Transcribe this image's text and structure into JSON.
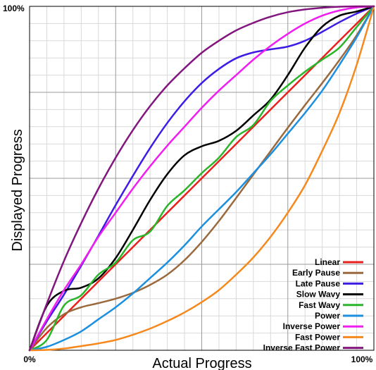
{
  "chart_data": {
    "type": "line",
    "xlabel": "Actual Progress",
    "ylabel": "Displayed Progress",
    "xlim": [
      0,
      100
    ],
    "ylim": [
      0,
      100
    ],
    "x_ticks": [
      {
        "value": 0,
        "label": "0%"
      },
      {
        "value": 100,
        "label": "100%"
      }
    ],
    "y_ticks": [
      {
        "value": 0,
        "label": "0%"
      },
      {
        "value": 100,
        "label": "100%"
      }
    ],
    "grid": true,
    "legend_position": "bottom-right",
    "series": [
      {
        "name": "Linear",
        "color": "#e8211d",
        "x": [
          0,
          10,
          20,
          30,
          40,
          50,
          60,
          70,
          80,
          90,
          100
        ],
        "y": [
          0,
          10,
          20,
          30,
          40,
          50,
          60,
          70,
          80,
          90,
          100
        ]
      },
      {
        "name": "Early Pause",
        "color": "#9a6a3e",
        "x": [
          0,
          5,
          10,
          15,
          20,
          25,
          30,
          35,
          40,
          45,
          50,
          55,
          60,
          65,
          70,
          75,
          80,
          85,
          90,
          95,
          100
        ],
        "y": [
          0,
          6.5,
          10.5,
          12.5,
          13.7,
          15,
          16.7,
          19,
          22,
          26.2,
          31.5,
          37.6,
          44.3,
          51.1,
          57.9,
          64.7,
          71.3,
          77.7,
          84.4,
          91.6,
          100
        ]
      },
      {
        "name": "Late Pause",
        "color": "#3f1be6",
        "x": [
          0,
          5,
          10,
          15,
          20,
          25,
          30,
          35,
          40,
          45,
          50,
          55,
          60,
          65,
          70,
          75,
          80,
          85,
          90,
          95,
          100
        ],
        "y": [
          0,
          8.4,
          16.2,
          24.6,
          33.3,
          42.2,
          50.7,
          58.8,
          66.1,
          72.4,
          77.7,
          81.8,
          84.9,
          86.6,
          87.5,
          88.3,
          90,
          92.6,
          95.4,
          97.9,
          100
        ]
      },
      {
        "name": "Slow Wavy",
        "color": "#000000",
        "x": [
          0,
          5,
          10,
          15,
          20,
          25,
          30,
          35,
          40,
          45,
          50,
          55,
          60,
          65,
          70,
          75,
          80,
          85,
          90,
          95,
          100
        ],
        "y": [
          0,
          12.9,
          17.3,
          18.2,
          20.9,
          26.8,
          35,
          43.7,
          51.2,
          56.7,
          59.3,
          60.9,
          63.8,
          68.3,
          72.9,
          80,
          88,
          94.1,
          97.3,
          98.5,
          100
        ]
      },
      {
        "name": "Fast Wavy",
        "color": "#2bb52b",
        "x": [
          0,
          5,
          10,
          15,
          20,
          25,
          30,
          35,
          40,
          45,
          50,
          55,
          60,
          65,
          70,
          75,
          80,
          85,
          90,
          95,
          100
        ],
        "y": [
          0,
          3,
          13,
          16,
          22,
          25.5,
          32,
          34.5,
          42,
          46.5,
          51.5,
          56,
          62,
          65.5,
          72.5,
          77,
          81,
          84.5,
          88,
          94,
          100
        ]
      },
      {
        "name": "Power",
        "color": "#1b8fe0",
        "x": [
          0,
          5,
          10,
          15,
          20,
          25,
          30,
          35,
          40,
          45,
          50,
          55,
          60,
          65,
          70,
          75,
          80,
          85,
          90,
          95,
          100
        ],
        "y": [
          0,
          1,
          3,
          5.5,
          9,
          12.5,
          16.5,
          21,
          25.5,
          30.5,
          36,
          41,
          46,
          51.5,
          57,
          63,
          69,
          75.5,
          83,
          91,
          100
        ]
      },
      {
        "name": "Inverse Power",
        "color": "#f01ef0",
        "x": [
          0,
          5,
          10,
          15,
          20,
          25,
          30,
          35,
          40,
          45,
          50,
          55,
          60,
          65,
          70,
          75,
          80,
          85,
          90,
          95,
          100
        ],
        "y": [
          0,
          9,
          17.5,
          25,
          33,
          40,
          47,
          53.5,
          59.5,
          65,
          70.5,
          75.5,
          80,
          84.5,
          88.5,
          92,
          95,
          97.3,
          98.8,
          99.7,
          100
        ]
      },
      {
        "name": "Fast Power",
        "color": "#f5891d",
        "x": [
          0,
          5,
          10,
          15,
          20,
          25,
          30,
          35,
          40,
          45,
          50,
          55,
          60,
          65,
          70,
          75,
          80,
          85,
          90,
          95,
          100
        ],
        "y": [
          0,
          0.1,
          0.5,
          1.2,
          2,
          3,
          4.5,
          6.3,
          8.5,
          11,
          14,
          17.5,
          22,
          27,
          33,
          40,
          48,
          58,
          69,
          83,
          100
        ]
      },
      {
        "name": "Inverse Fast Power",
        "color": "#82167e",
        "x": [
          0,
          5,
          10,
          15,
          20,
          25,
          30,
          35,
          40,
          45,
          50,
          55,
          60,
          65,
          70,
          75,
          80,
          85,
          90,
          95,
          100
        ],
        "y": [
          0,
          13.5,
          26,
          37,
          47,
          56,
          64,
          71,
          77,
          82,
          86.5,
          90,
          93,
          95.2,
          97,
          98.3,
          99.1,
          99.6,
          99.9,
          100,
          100
        ]
      }
    ]
  }
}
